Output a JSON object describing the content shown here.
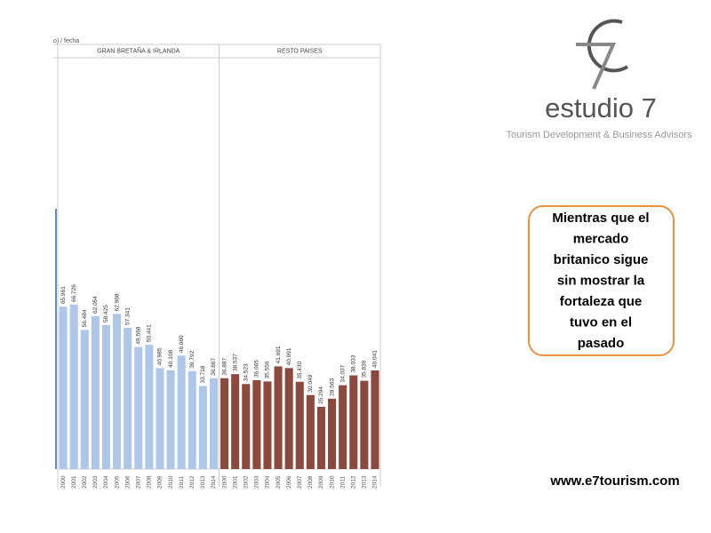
{
  "header": {
    "logo_text": "estudio 7",
    "tagline": "Tourism Development & Business Advisors"
  },
  "callout": {
    "lines": [
      "Mientras que el",
      "mercado",
      "britanico sigue",
      "sin mostrar la",
      "fortaleza que",
      "tuvo en el",
      "pasado"
    ]
  },
  "footer": "www.e7tourism.com",
  "chart_data": {
    "type": "bar",
    "subtitle": "o) / fecha",
    "ylim": [
      0,
      167000
    ],
    "panels": [
      {
        "title": "GRAN BRETAÑA & IRLANDA",
        "color": "#aec7e8",
        "categories": [
          "2000",
          "2001",
          "2002",
          "2003",
          "2004",
          "2005",
          "2006",
          "2007",
          "2008",
          "2009",
          "2010",
          "2011",
          "2012",
          "2013",
          "2014"
        ],
        "values": [
          65961,
          66726,
          56484,
          62054,
          58425,
          62968,
          57341,
          49568,
          50441,
          40985,
          40108,
          46080,
          39792,
          33718,
          36867
        ],
        "value_labels": [
          "65.961",
          "66.726",
          "56.484",
          "62.054",
          "58.425",
          "62.968",
          "57.341",
          "49.568",
          "50.441",
          "40.985",
          "40.108",
          "46.080",
          "39.792",
          "33.718",
          "36.867"
        ]
      },
      {
        "title": "RESTO PAISES",
        "color": "#8c4a3e",
        "categories": [
          "2000",
          "2001",
          "2002",
          "2003",
          "2004",
          "2005",
          "2006",
          "2007",
          "2008",
          "2009",
          "2010",
          "2011",
          "2012",
          "2013",
          "2014"
        ],
        "values": [
          36887,
          38537,
          34523,
          36065,
          35556,
          41691,
          40991,
          35430,
          30049,
          25294,
          28563,
          34037,
          38033,
          35839,
          40041
        ],
        "value_labels": [
          "36.887",
          "38.537",
          "34.523",
          "36.065",
          "35.556",
          "41.691",
          "40.991",
          "35.430",
          "30.049",
          "25.294",
          "28.563",
          "34.037",
          "38.033",
          "35.839",
          "40.041"
        ]
      }
    ]
  }
}
